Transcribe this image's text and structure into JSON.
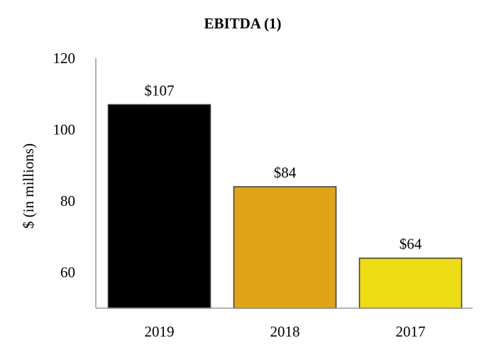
{
  "chart_data": {
    "type": "bar",
    "title": "EBITDA (1)",
    "xlabel": "",
    "ylabel": "$ (in millions)",
    "categories": [
      "2019",
      "2018",
      "2017"
    ],
    "values": [
      107,
      84,
      64
    ],
    "value_labels": [
      "$107",
      "$84",
      "$64"
    ],
    "bar_colors": [
      "#000000",
      "#E2A417",
      "#EEDC14"
    ],
    "ylim": [
      50,
      120
    ],
    "yticks": [
      60,
      80,
      100,
      120
    ],
    "ytick_labels": [
      "60",
      "80",
      "100",
      "120"
    ],
    "grid": false,
    "legend": "none"
  }
}
